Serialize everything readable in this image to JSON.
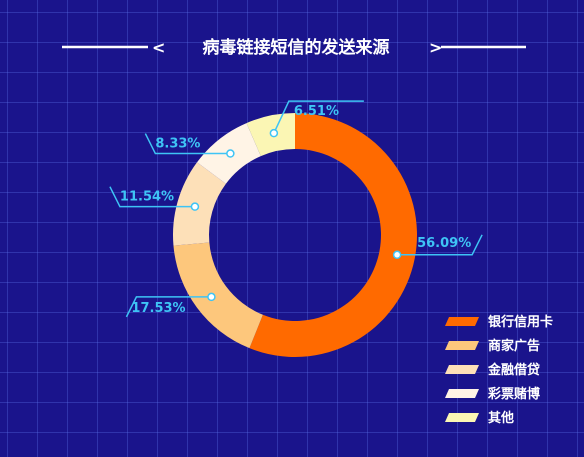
{
  "chart_data": {
    "type": "pie",
    "donut": true,
    "title": "病毒链接短信的发送来源",
    "categories": [
      "银行信用卡",
      "商家广告",
      "金融借贷",
      "彩票赌博",
      "其他"
    ],
    "values": [
      56.09,
      17.53,
      11.54,
      8.33,
      6.51
    ],
    "value_labels": [
      "56.09%",
      "17.53%",
      "11.54%",
      "8.33%",
      "6.51%"
    ],
    "colors": [
      "#ff6a00",
      "#fdc77c",
      "#fde0b8",
      "#fff4e6",
      "#fbf6b4"
    ],
    "legend_position": "bottom-right"
  },
  "style": {
    "background": "#1a148c",
    "accent": "#3ec4f5",
    "title_color": "#ffffff"
  }
}
